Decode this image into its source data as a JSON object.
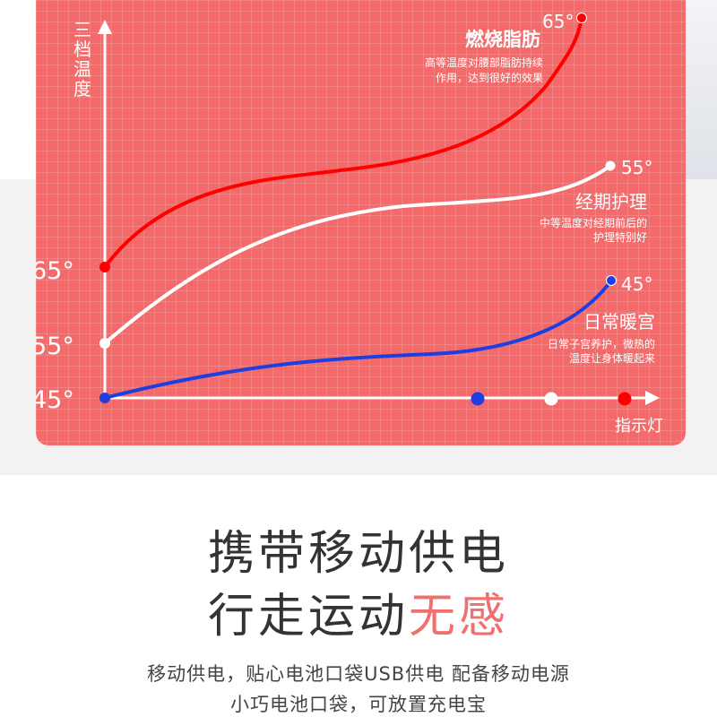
{
  "chart_data": {
    "type": "line",
    "ylabel": "三档温度",
    "xlabel": "指示灯",
    "ytick_labels": [
      "45°",
      "55°",
      "65°"
    ],
    "series": [
      {
        "name": "燃烧脂肪",
        "end_label": "65°",
        "description_lines": [
          "高等温度对腰部脂肪持续",
          "作用，达到很好的效果"
        ],
        "color": "#ff0000",
        "start_value": 65,
        "end_value": 65
      },
      {
        "name": "经期护理",
        "end_label": "55°",
        "description_lines": [
          "中等温度对经期前后的",
          "护理特别好"
        ],
        "color": "#ffffff",
        "start_value": 55,
        "end_value": 55
      },
      {
        "name": "日常暖宫",
        "end_label": "45°",
        "description_lines": [
          "日常子宫养护，微热的",
          "温度让身体暖起来"
        ],
        "color": "#1e3fe0",
        "start_value": 45,
        "end_value": 45
      }
    ],
    "indicator_dot_colors": [
      "#1e3fe0",
      "#ffffff",
      "#ff0000"
    ]
  },
  "headline": {
    "line1": "携带移动供电",
    "line2_plain": "行走运动",
    "line2_accent": "无感"
  },
  "subtext": {
    "line1": "移动供电，贴心电池口袋USB供电 配备移动电源",
    "line2": "小巧电池口袋，可放置充电宝"
  }
}
